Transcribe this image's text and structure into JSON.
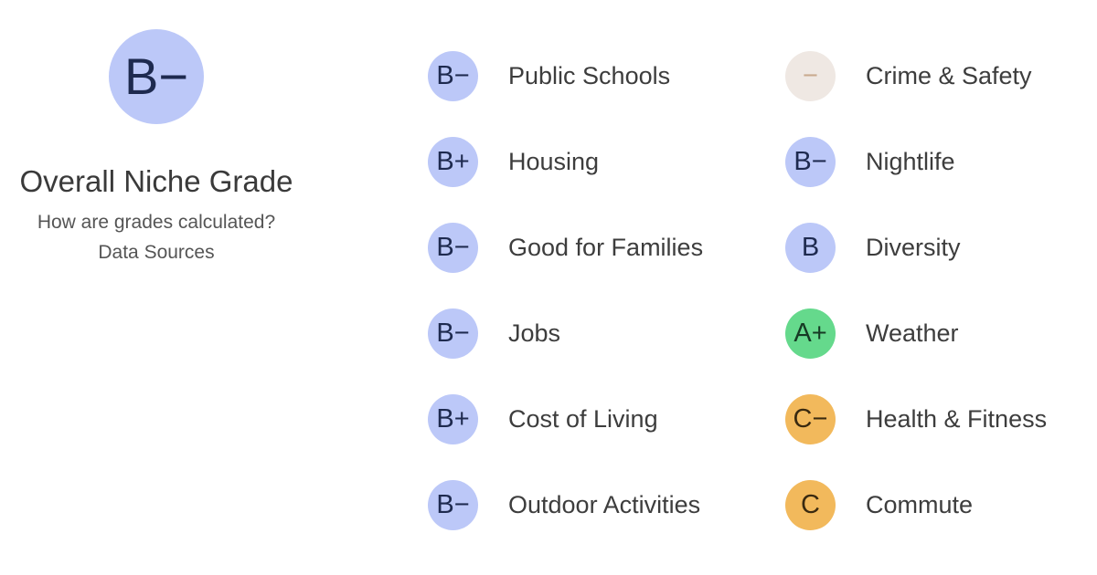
{
  "overall": {
    "grade": "B−",
    "title": "Overall Niche Grade",
    "link_how": "How are grades calculated?",
    "link_sources": "Data Sources",
    "color": "#bcc8f8"
  },
  "grades_left": [
    {
      "grade": "B−",
      "label": "Public Schools"
    },
    {
      "grade": "B+",
      "label": "Housing"
    },
    {
      "grade": "B−",
      "label": "Good for Families"
    },
    {
      "grade": "B−",
      "label": "Jobs"
    },
    {
      "grade": "B+",
      "label": "Cost of Living"
    },
    {
      "grade": "B−",
      "label": "Outdoor Activities"
    }
  ],
  "grades_right": [
    {
      "grade": "−",
      "label": "Crime & Safety"
    },
    {
      "grade": "B−",
      "label": "Nightlife"
    },
    {
      "grade": "B",
      "label": "Diversity"
    },
    {
      "grade": "A+",
      "label": "Weather"
    },
    {
      "grade": "C−",
      "label": "Health & Fitness"
    },
    {
      "grade": "C",
      "label": "Commute"
    }
  ],
  "colors": {
    "grade_b": "#bcc8f8",
    "grade_a": "#65d98c",
    "grade_c": "#f2b95c",
    "grade_none": "#efe8e3"
  }
}
